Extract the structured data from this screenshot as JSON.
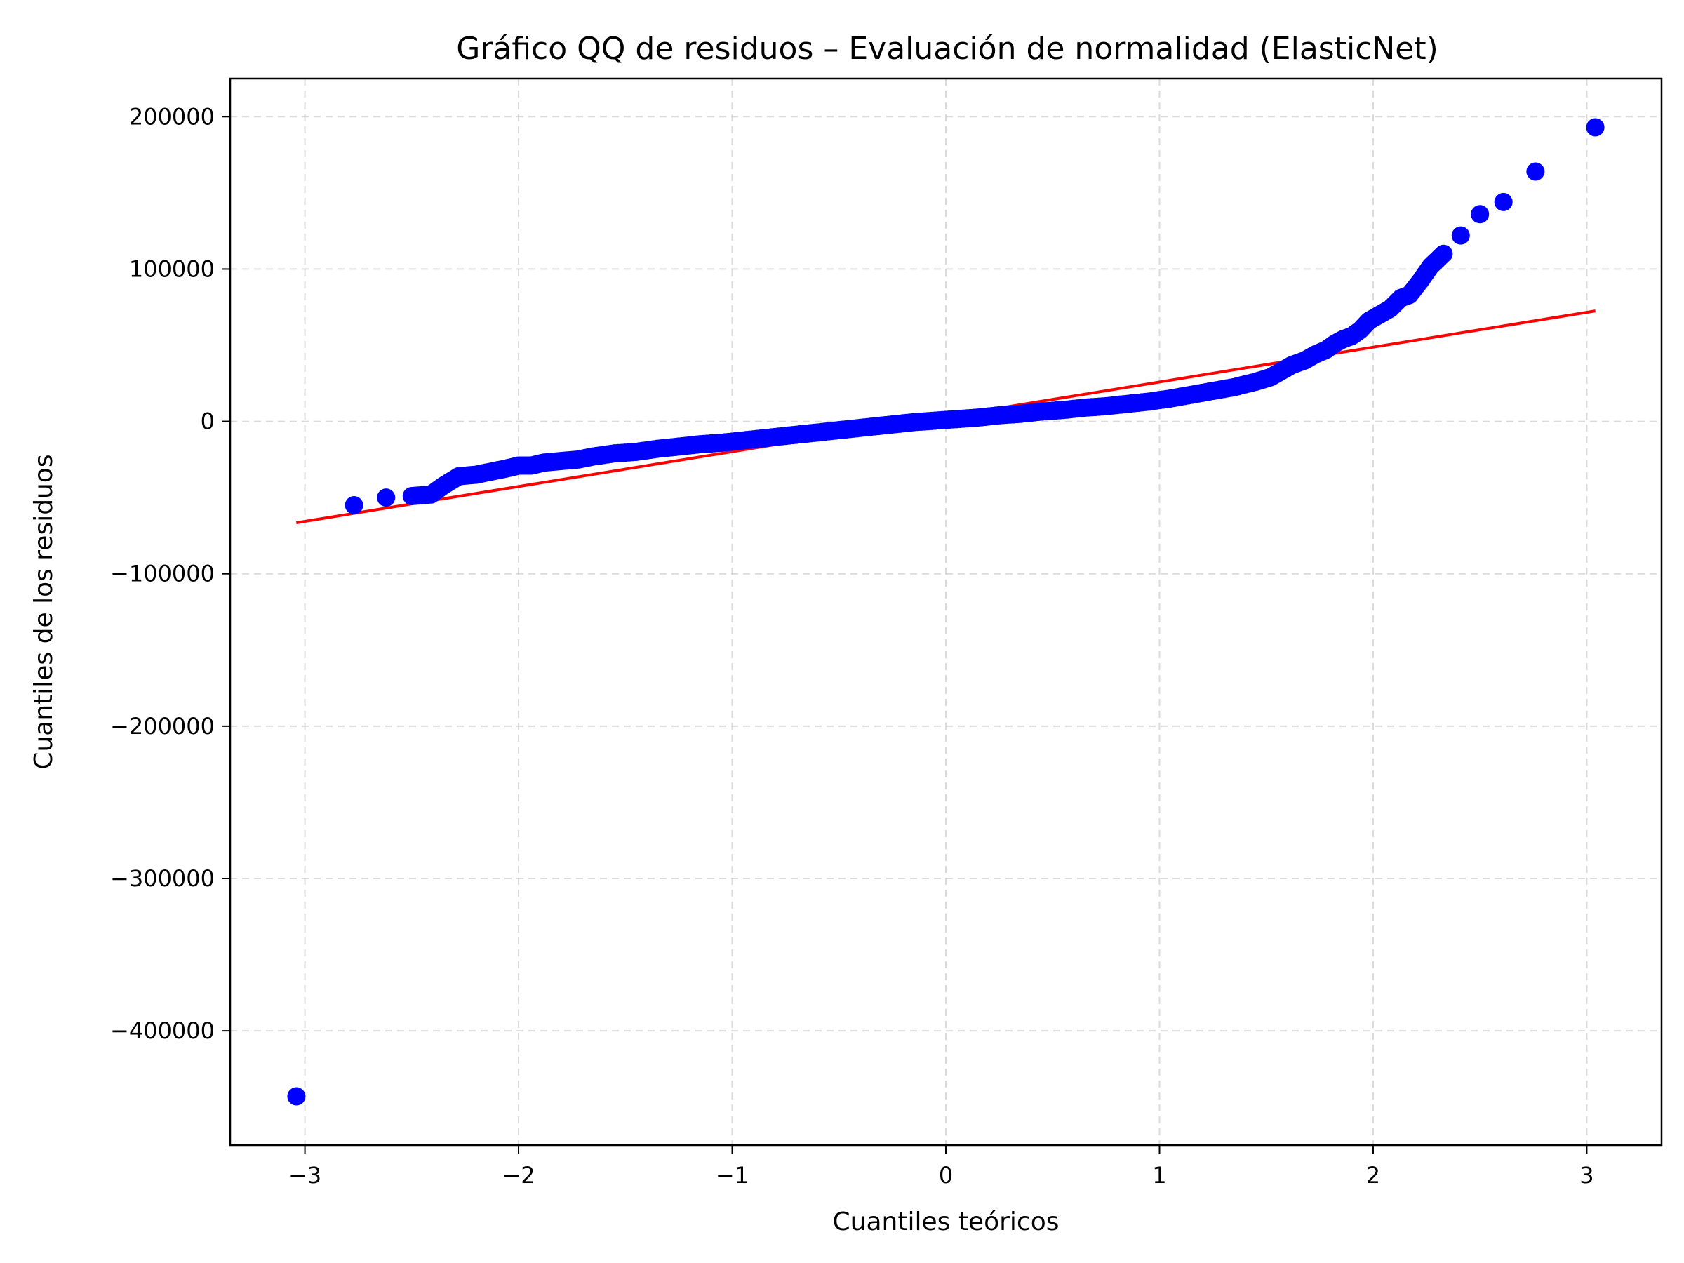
{
  "chart_data": {
    "type": "scatter",
    "title": "Gráfico QQ de residuos – Evaluación de normalidad (ElasticNet)",
    "xlabel": "Cuantiles teóricos",
    "ylabel": "Cuantiles de los residuos",
    "xlim": [
      -3.35,
      3.35
    ],
    "ylim": [
      -475000,
      225000
    ],
    "x_ticks": [
      -3,
      -2,
      -1,
      0,
      1,
      2,
      3
    ],
    "x_tick_labels": [
      "−3",
      "−2",
      "−1",
      "0",
      "1",
      "2",
      "3"
    ],
    "y_ticks": [
      -400000,
      -300000,
      -200000,
      -100000,
      0,
      100000,
      200000
    ],
    "y_tick_labels": [
      "−400000",
      "−300000",
      "−200000",
      "−100000",
      "0",
      "100000",
      "200000"
    ],
    "grid": true,
    "point_color": "#0000ff",
    "line_color": "#ff0000",
    "reference_line": {
      "x": [
        -3.04,
        3.04
      ],
      "y": [
        -66500,
        72500
      ]
    },
    "points": [
      [
        -3.04,
        -443000
      ],
      [
        -2.77,
        -55000
      ],
      [
        -2.62,
        -50000
      ],
      [
        -2.5,
        -49000
      ],
      [
        -2.41,
        -48000
      ],
      [
        -2.35,
        -42000
      ],
      [
        -2.28,
        -36000
      ],
      [
        -2.2,
        -35000
      ],
      [
        -2.13,
        -33000
      ],
      [
        -2.06,
        -31000
      ],
      [
        -2.0,
        -29000
      ],
      [
        -1.94,
        -29000
      ],
      [
        -1.88,
        -27000
      ],
      [
        -1.8,
        -26000
      ],
      [
        -1.72,
        -25000
      ],
      [
        -1.65,
        -23000
      ],
      [
        -1.55,
        -21000
      ],
      [
        -1.45,
        -20000
      ],
      [
        -1.35,
        -18000
      ],
      [
        -1.25,
        -16500
      ],
      [
        -1.15,
        -15000
      ],
      [
        -1.05,
        -14000
      ],
      [
        -0.95,
        -12500
      ],
      [
        -0.85,
        -11000
      ],
      [
        -0.75,
        -9500
      ],
      [
        -0.65,
        -8000
      ],
      [
        -0.55,
        -6500
      ],
      [
        -0.45,
        -5000
      ],
      [
        -0.35,
        -3500
      ],
      [
        -0.25,
        -2000
      ],
      [
        -0.15,
        -500
      ],
      [
        -0.05,
        500
      ],
      [
        0.05,
        1500
      ],
      [
        0.15,
        2500
      ],
      [
        0.25,
        4000
      ],
      [
        0.35,
        5000
      ],
      [
        0.45,
        6500
      ],
      [
        0.55,
        7500
      ],
      [
        0.65,
        9000
      ],
      [
        0.75,
        10000
      ],
      [
        0.85,
        11500
      ],
      [
        0.95,
        13000
      ],
      [
        1.05,
        15000
      ],
      [
        1.15,
        17500
      ],
      [
        1.25,
        20000
      ],
      [
        1.35,
        22500
      ],
      [
        1.45,
        26000
      ],
      [
        1.52,
        29000
      ],
      [
        1.57,
        33000
      ],
      [
        1.62,
        37000
      ],
      [
        1.68,
        40000
      ],
      [
        1.73,
        44000
      ],
      [
        1.78,
        47000
      ],
      [
        1.82,
        51000
      ],
      [
        1.86,
        54000
      ],
      [
        1.9,
        56000
      ],
      [
        1.94,
        60000
      ],
      [
        1.98,
        66000
      ],
      [
        2.03,
        70000
      ],
      [
        2.08,
        74000
      ],
      [
        2.13,
        81000
      ],
      [
        2.17,
        83000
      ],
      [
        2.22,
        92000
      ],
      [
        2.27,
        102000
      ],
      [
        2.33,
        110000
      ],
      [
        2.41,
        122000
      ],
      [
        2.5,
        136000
      ],
      [
        2.61,
        144000
      ],
      [
        2.76,
        164000
      ],
      [
        3.04,
        193000
      ]
    ]
  }
}
